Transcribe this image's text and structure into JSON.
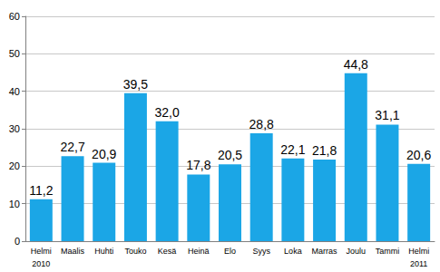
{
  "chart_data": {
    "type": "bar",
    "categories": [
      "Helmi\n2010",
      "Maalis",
      "Huhti",
      "Touko",
      "Kesä",
      "Heinä",
      "Elo",
      "Syys",
      "Loka",
      "Marras",
      "Joulu",
      "Tammi",
      "Helmi\n2011"
    ],
    "values": [
      11.2,
      22.7,
      20.9,
      39.5,
      32.0,
      17.8,
      20.5,
      28.8,
      22.1,
      21.8,
      44.8,
      31.1,
      20.6
    ],
    "value_labels": [
      "11,2",
      "22,7",
      "20,9",
      "39,5",
      "32,0",
      "17,8",
      "20,5",
      "28,8",
      "22,1",
      "21,8",
      "44,8",
      "31,1",
      "20,6"
    ],
    "color": "#1ba6e6",
    "ylim": [
      0,
      60
    ],
    "yticks": [
      0,
      10,
      20,
      30,
      40,
      50,
      60
    ],
    "grid": true,
    "data_labels": true
  }
}
